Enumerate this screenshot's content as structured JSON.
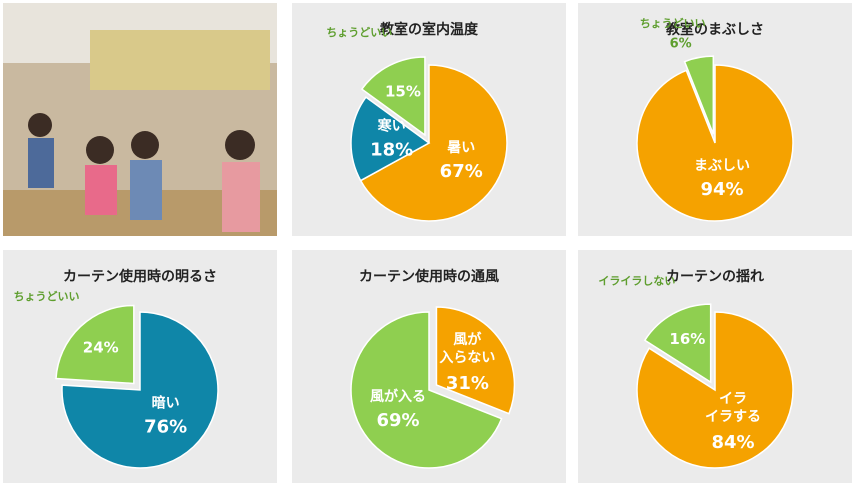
{
  "chart_data": [
    {
      "type": "pie",
      "title": "教室の室内温度",
      "categories": [
        "暑い",
        "寒い",
        "ちょうどいい"
      ],
      "values": [
        67,
        18,
        15
      ],
      "value_labels": [
        "67%",
        "18%",
        "15%"
      ],
      "colors": [
        "#f5a200",
        "#0f86a8",
        "#8fcf50"
      ],
      "explode": [
        false,
        false,
        true
      ]
    },
    {
      "type": "pie",
      "title": "教室のまぶしさ",
      "categories": [
        "まぶしい",
        "ちょうどいい"
      ],
      "values": [
        94,
        6
      ],
      "value_labels": [
        "94%",
        "6%"
      ],
      "colors": [
        "#f5a200",
        "#8fcf50"
      ],
      "explode": [
        false,
        true
      ]
    },
    {
      "type": "pie",
      "title": "カーテン使用時の明るさ",
      "categories": [
        "暗い",
        "ちょうどいい"
      ],
      "values": [
        76,
        24
      ],
      "value_labels": [
        "76%",
        "24%"
      ],
      "colors": [
        "#0f86a8",
        "#8fcf50"
      ],
      "explode": [
        false,
        true
      ]
    },
    {
      "type": "pie",
      "title": "カーテン使用時の通風",
      "categories": [
        "風が入らない",
        "風が入る"
      ],
      "values": [
        31,
        69
      ],
      "value_labels": [
        "31%",
        "69%"
      ],
      "colors": [
        "#f5a200",
        "#8fcf50"
      ],
      "explode": [
        true,
        false
      ]
    },
    {
      "type": "pie",
      "title": "カーテンの揺れ",
      "categories": [
        "イライラする",
        "イライラしない"
      ],
      "values": [
        84,
        16
      ],
      "value_labels": [
        "84%",
        "16%"
      ],
      "colors": [
        "#f5a200",
        "#8fcf50"
      ],
      "explode": [
        false,
        true
      ]
    }
  ]
}
